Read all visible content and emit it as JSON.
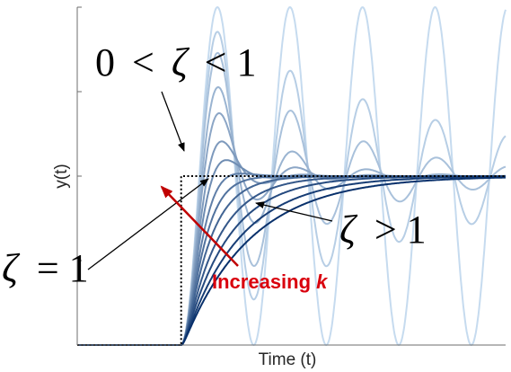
{
  "chart_data": {
    "type": "line",
    "title": "",
    "xlabel": "Time (t)",
    "ylabel": "y(t)",
    "grid": false,
    "legend": "none",
    "step_input": {
      "style": "dotted",
      "color": "#000000",
      "step_time": 0,
      "value": 1
    },
    "xlim": [
      -4.5,
      14.05
    ],
    "ylim": [
      0,
      2.0
    ],
    "y_ticks": [
      0,
      0.5,
      1,
      1.5,
      2
    ],
    "series_color_light": "#c6dbef",
    "series_color_dark": "#08306b",
    "damping_ratios": [
      0,
      0.05,
      0.1,
      0.2,
      0.3,
      0.45,
      0.6,
      0.8,
      1.0,
      1.25,
      1.6,
      2.0,
      2.5,
      3.0
    ],
    "natural_frequency": 2.0,
    "annotations": {
      "underdamped": {
        "lhs": "0",
        "op1": "<",
        "var": "ζ",
        "op2": "<",
        "rhs": "1"
      },
      "critical": {
        "var": "ζ",
        "op": "=",
        "rhs": "1"
      },
      "overdamped": {
        "var": "ζ",
        "op": ">",
        "rhs": "1"
      },
      "increasing": {
        "text": "Increasing ",
        "var": "k"
      }
    }
  }
}
